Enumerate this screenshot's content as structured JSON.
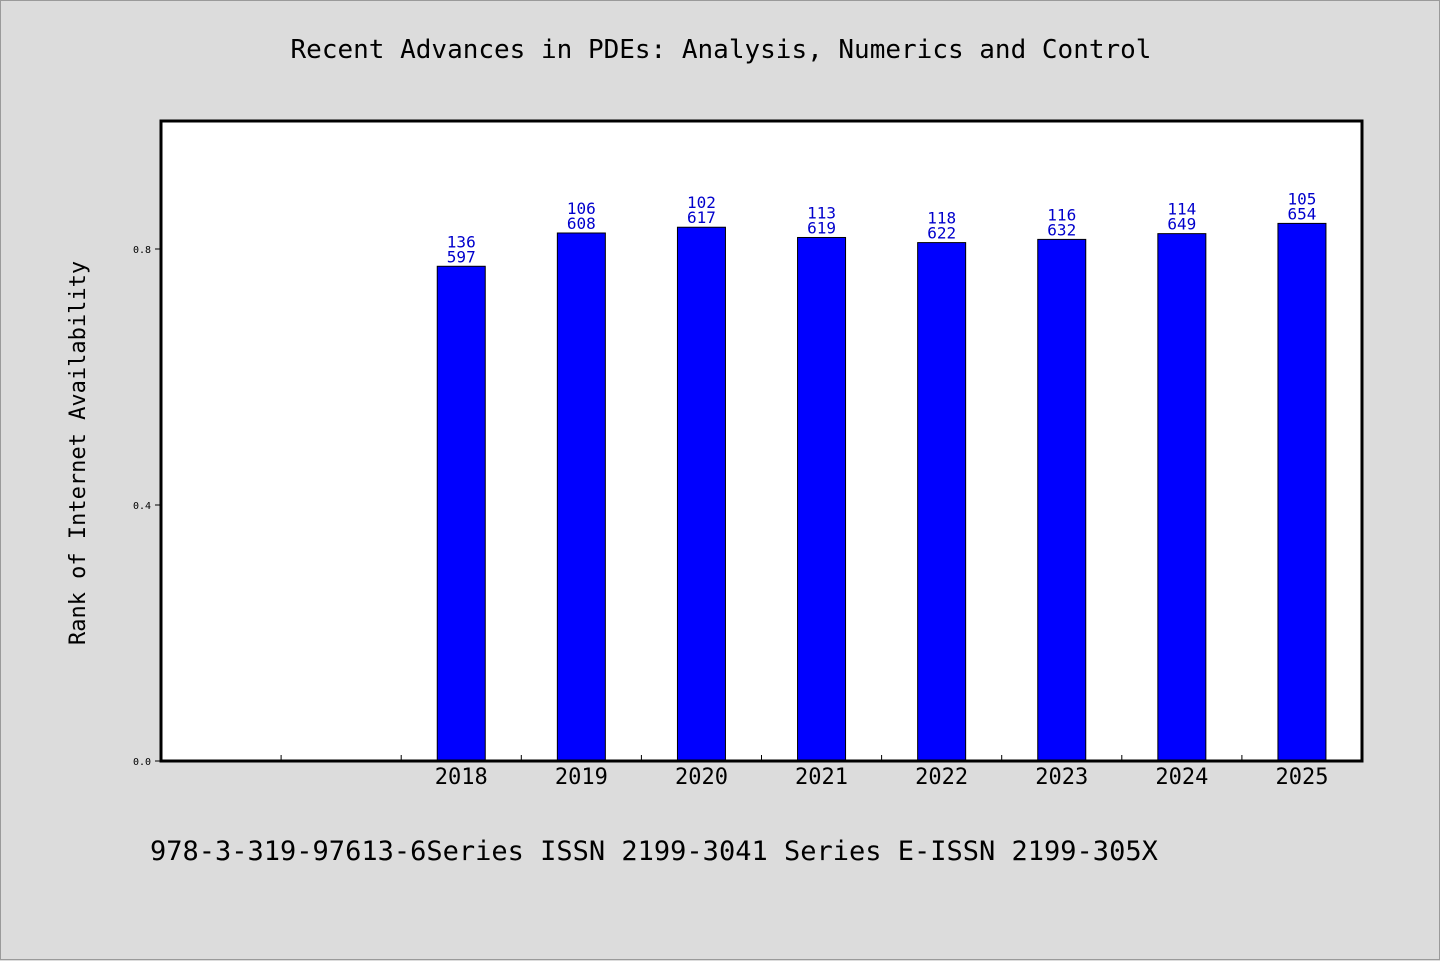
{
  "chart_data": {
    "type": "bar",
    "title": "Recent Advances in PDEs: Analysis, Numerics and Control",
    "ylabel": "Rank of Internet Availability",
    "xlabel": "",
    "ylim": [
      0,
      1.0
    ],
    "yticks": [
      "0.0",
      "0.4",
      "0.8"
    ],
    "ytick_values": [
      0.0,
      0.4,
      0.8
    ],
    "x_slots": 10,
    "first_bar_slot": 2,
    "categories": [
      "2018",
      "2019",
      "2020",
      "2021",
      "2022",
      "2023",
      "2024",
      "2025"
    ],
    "values": [
      0.773,
      0.825,
      0.834,
      0.818,
      0.81,
      0.815,
      0.824,
      0.84
    ],
    "labels_top": [
      "136",
      "106",
      "102",
      "113",
      "118",
      "116",
      "114",
      "105"
    ],
    "labels_bottom": [
      "597",
      "608",
      "617",
      "619",
      "622",
      "632",
      "649",
      "654"
    ],
    "bar_color": "#0000ff",
    "label_color": "#0000cc",
    "grid": false,
    "legend": "none"
  },
  "footer": "978-3-319-97613-6Series ISSN 2199-3041 Series E-ISSN 2199-305X"
}
